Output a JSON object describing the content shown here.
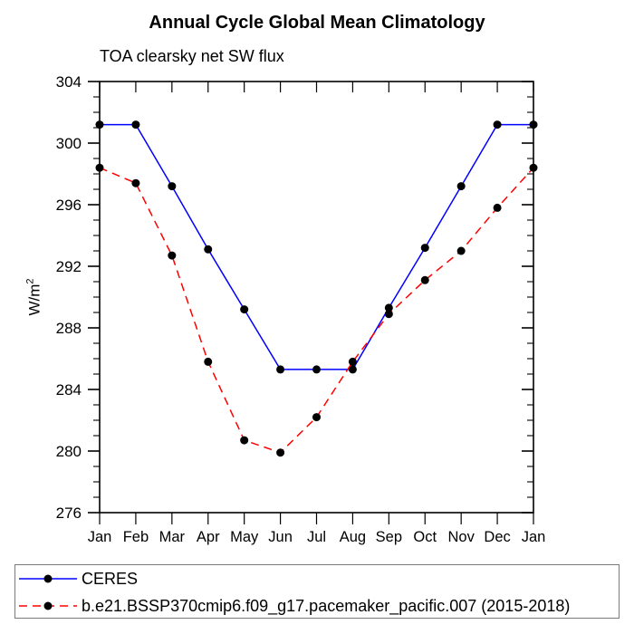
{
  "title": "Annual Cycle Global Mean Climatology",
  "subtitle": "TOA clearsky net SW flux",
  "y_axis": {
    "label_prefix": "W/m",
    "label_sup": "2"
  },
  "colors": {
    "ceres_line": "#0000ff",
    "model_line": "#ff0000",
    "marker": "#000000",
    "axis": "#000000"
  },
  "chart_data": {
    "type": "line",
    "title": "Annual Cycle Global Mean Climatology",
    "subtitle": "TOA clearsky net SW flux",
    "ylabel": "W/m^2",
    "xlabel": "",
    "categories": [
      "Jan",
      "Feb",
      "Mar",
      "Apr",
      "May",
      "Jun",
      "Jul",
      "Aug",
      "Sep",
      "Oct",
      "Nov",
      "Dec",
      "Jan"
    ],
    "ylim": [
      276,
      304
    ],
    "ytick_interval": 4,
    "yminor_interval": 1,
    "ytick_labels": [
      "276",
      "280",
      "284",
      "288",
      "292",
      "296",
      "300",
      "304"
    ],
    "grid": false,
    "legend_position": "bottom-left-box",
    "series": [
      {
        "name": "CERES",
        "color": "#0000ff",
        "line_style": "solid",
        "marker": "circle",
        "marker_color": "#000000",
        "values": [
          301.2,
          301.2,
          297.2,
          293.1,
          289.2,
          285.3,
          285.3,
          285.3,
          289.3,
          293.2,
          297.2,
          301.2,
          301.2
        ]
      },
      {
        "name": "b.e21.BSSP370cmip6.f09_g17.pacemaker_pacific.007 (2015-2018)",
        "color": "#ff0000",
        "line_style": "dashed",
        "marker": "circle",
        "marker_color": "#000000",
        "values": [
          298.4,
          297.4,
          292.7,
          285.8,
          280.7,
          279.9,
          282.2,
          285.8,
          288.9,
          291.1,
          293.0,
          295.8,
          298.4
        ]
      }
    ]
  }
}
